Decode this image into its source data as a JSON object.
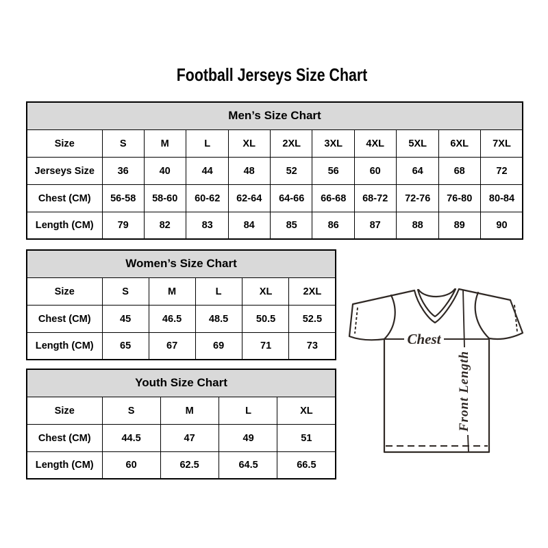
{
  "page": {
    "title": "Football Jerseys Size Chart"
  },
  "tables": [
    {
      "id": "mens",
      "title": "Men’s Size Chart",
      "rows": [
        [
          "Size",
          "S",
          "M",
          "L",
          "XL",
          "2XL",
          "3XL",
          "4XL",
          "5XL",
          "6XL",
          "7XL"
        ],
        [
          "Jerseys Size",
          "36",
          "40",
          "44",
          "48",
          "52",
          "56",
          "60",
          "64",
          "68",
          "72"
        ],
        [
          "Chest (CM)",
          "56-58",
          "58-60",
          "60-62",
          "62-64",
          "64-66",
          "66-68",
          "68-72",
          "72-76",
          "76-80",
          "80-84"
        ],
        [
          "Length (CM)",
          "79",
          "82",
          "83",
          "84",
          "85",
          "86",
          "87",
          "88",
          "89",
          "90"
        ]
      ]
    },
    {
      "id": "womens",
      "title": "Women’s Size Chart",
      "rows": [
        [
          "Size",
          "S",
          "M",
          "L",
          "XL",
          "2XL"
        ],
        [
          "Chest (CM)",
          "45",
          "46.5",
          "48.5",
          "50.5",
          "52.5"
        ],
        [
          "Length (CM)",
          "65",
          "67",
          "69",
          "71",
          "73"
        ]
      ]
    },
    {
      "id": "youth",
      "title": "Youth Size Chart",
      "rows": [
        [
          "Size",
          "S",
          "M",
          "L",
          "XL"
        ],
        [
          "Chest (CM)",
          "44.5",
          "47",
          "49",
          "51"
        ],
        [
          "Length (CM)",
          "60",
          "62.5",
          "64.5",
          "66.5"
        ]
      ]
    }
  ],
  "diagram": {
    "chest_label": "Chest",
    "front_length_label": "Front Length"
  },
  "colors": {
    "section_header_bg": "#d9d9d9",
    "table_border": "#000000",
    "text": "#000000",
    "diagram_stroke": "#2f2824"
  }
}
